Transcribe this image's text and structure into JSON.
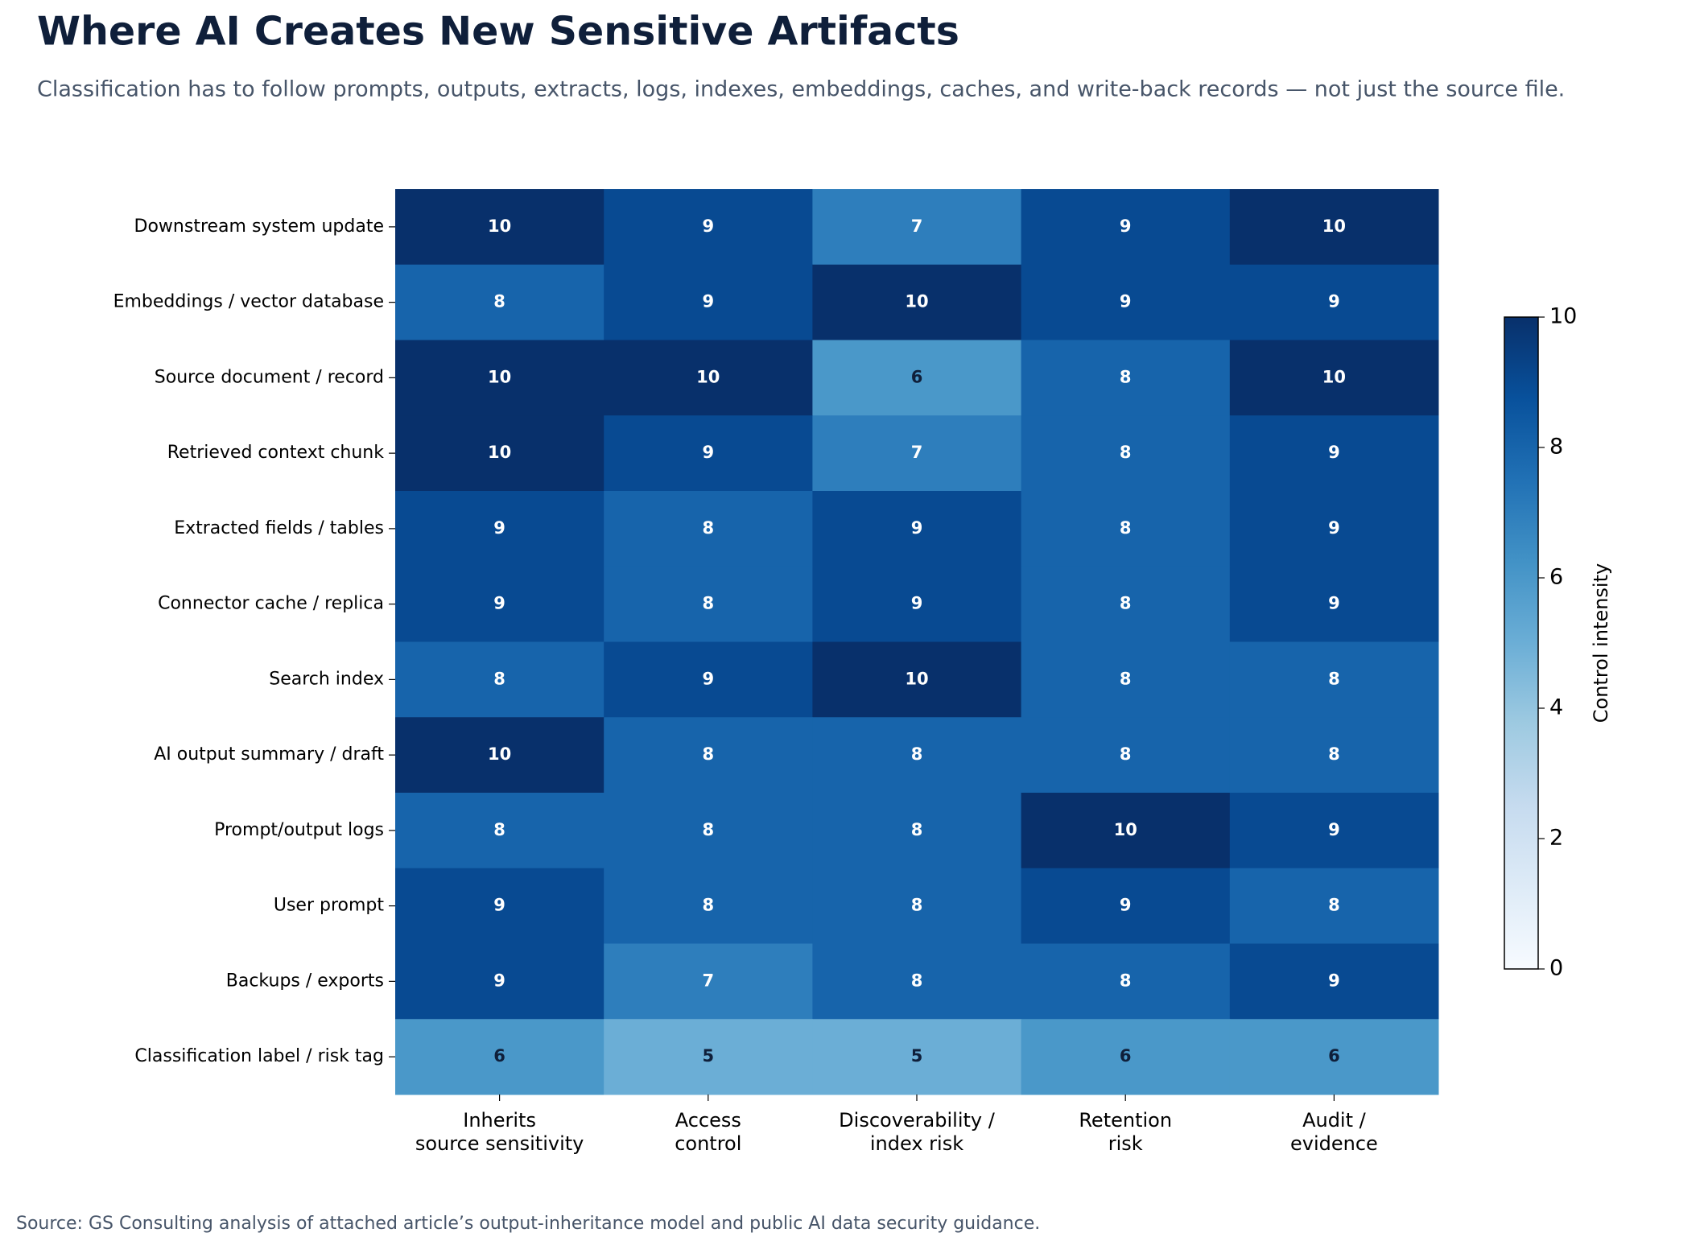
{
  "chart_data": {
    "type": "heatmap",
    "title": "Where AI Creates New Sensitive Artifacts",
    "subtitle": "Classification has to follow prompts, outputs, extracts, logs, indexes, embeddings, caches, and write-back records — not just the source file.",
    "source": "Source: GS Consulting analysis of attached article’s output-inheritance model and public AI data security guidance.",
    "rows": [
      "Downstream system update",
      "Embeddings / vector database",
      "Source document / record",
      "Retrieved context chunk",
      "Extracted fields / tables",
      "Connector cache / replica",
      "Search index",
      "AI output summary / draft",
      "Prompt/output logs",
      "User prompt",
      "Backups / exports",
      "Classification label / risk tag"
    ],
    "columns": [
      [
        "Inherits",
        "source sensitivity"
      ],
      [
        "Access",
        "control"
      ],
      [
        "Discoverability /",
        "index risk"
      ],
      [
        "Retention",
        "risk"
      ],
      [
        "Audit /",
        "evidence"
      ]
    ],
    "values": [
      [
        10,
        9,
        7,
        9,
        10
      ],
      [
        8,
        9,
        10,
        9,
        9
      ],
      [
        10,
        10,
        6,
        8,
        10
      ],
      [
        10,
        9,
        7,
        8,
        9
      ],
      [
        9,
        8,
        9,
        8,
        9
      ],
      [
        9,
        8,
        9,
        8,
        9
      ],
      [
        8,
        9,
        10,
        8,
        8
      ],
      [
        10,
        8,
        8,
        8,
        8
      ],
      [
        8,
        8,
        8,
        10,
        9
      ],
      [
        9,
        8,
        8,
        9,
        8
      ],
      [
        9,
        7,
        8,
        8,
        9
      ],
      [
        6,
        5,
        5,
        6,
        6
      ]
    ],
    "colormap": "Blues",
    "colorbar_label": "Control intensity",
    "clim": [
      0,
      10
    ],
    "cticks": [
      0,
      2,
      4,
      6,
      8,
      10
    ]
  }
}
